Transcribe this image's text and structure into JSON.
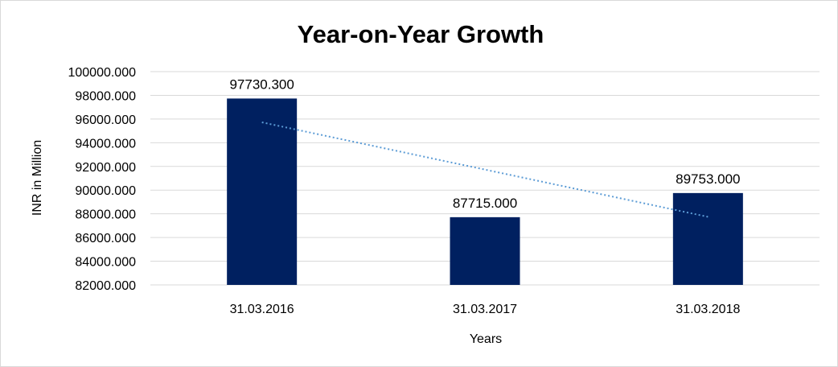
{
  "chart_data": {
    "type": "bar",
    "title": "Year-on-Year Growth",
    "xlabel": "Years",
    "ylabel": "INR in Million",
    "categories": [
      "31.03.2016",
      "31.03.2017",
      "31.03.2018"
    ],
    "values": [
      97730.3,
      87715.0,
      89753.0
    ],
    "data_labels": [
      "97730.300",
      "87715.000",
      "89753.000"
    ],
    "ylim": [
      82000,
      100000
    ],
    "yticks": [
      "82000.000",
      "84000.000",
      "86000.000",
      "88000.000",
      "90000.000",
      "92000.000",
      "94000.000",
      "96000.000",
      "98000.000",
      "100000.000"
    ],
    "trendline": {
      "type": "linear",
      "style": "dotted",
      "color": "#5b9bd5"
    },
    "grid": true,
    "legend": "none",
    "colors": {
      "bar": "#002060",
      "grid": "#d9d9d9"
    }
  }
}
